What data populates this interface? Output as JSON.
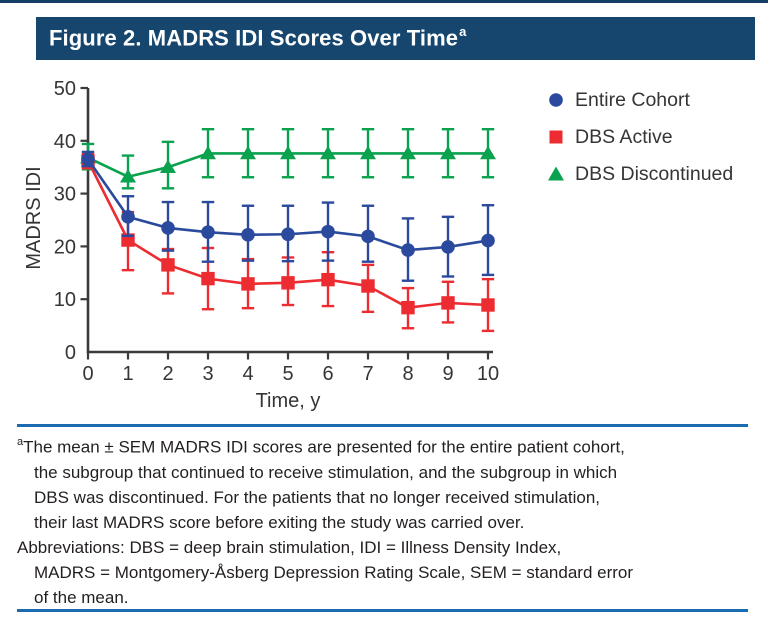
{
  "header": {
    "title": "Figure 2. MADRS IDI Scores Over Time",
    "superscript": "a",
    "bg": "#16466d",
    "text_color": "#ffffff"
  },
  "rules": {
    "top_color": "#163f66",
    "separator_color": "#1b6bb0"
  },
  "chart_data": {
    "type": "line",
    "title": "MADRS IDI Scores Over Time",
    "xlabel": "Time, y",
    "ylabel": "MADRS IDI",
    "xlim": [
      0,
      10
    ],
    "ylim": [
      0,
      50
    ],
    "xticks": [
      0,
      1,
      2,
      3,
      4,
      5,
      6,
      7,
      8,
      9,
      10
    ],
    "yticks": [
      0,
      10,
      20,
      30,
      40,
      50
    ],
    "grid": false,
    "legend_position": "top-right",
    "error_bars": "mean ± SEM",
    "axis_color": "#3b3b3b",
    "series": [
      {
        "name": "Entire Cohort",
        "marker": "circle",
        "color": "#2b4a9d",
        "values": [
          36.5,
          25.6,
          23.5,
          22.7,
          22.2,
          22.3,
          22.8,
          21.9,
          19.3,
          19.9,
          21.1
        ],
        "err_low": [
          35.2,
          22.0,
          19.2,
          17.1,
          17.3,
          17.2,
          17.3,
          17.1,
          13.5,
          14.3,
          14.6
        ],
        "err_high": [
          37.9,
          29.5,
          28.4,
          28.4,
          27.7,
          27.7,
          28.3,
          27.7,
          25.3,
          25.6,
          27.8
        ]
      },
      {
        "name": "DBS Active",
        "marker": "square",
        "color": "#ec2c30",
        "values": [
          36.2,
          21.2,
          16.5,
          13.9,
          12.9,
          13.1,
          13.7,
          12.5,
          8.4,
          9.3,
          8.9
        ],
        "err_low": [
          34.8,
          15.5,
          11.1,
          8.1,
          8.3,
          8.9,
          8.7,
          7.6,
          4.5,
          5.6,
          4.0
        ],
        "err_high": [
          37.6,
          26.5,
          19.5,
          19.7,
          17.6,
          17.9,
          18.9,
          16.5,
          12.1,
          13.3,
          13.8
        ]
      },
      {
        "name": "DBS Discontinued",
        "marker": "triangle",
        "color": "#0aa24e",
        "values": [
          36.8,
          33.2,
          35.0,
          37.6,
          37.6,
          37.6,
          37.6,
          37.6,
          37.6,
          37.6,
          37.6
        ],
        "err_low": [
          34.6,
          31.0,
          31.0,
          33.1,
          33.1,
          33.1,
          33.1,
          33.1,
          33.1,
          33.1,
          33.1
        ],
        "err_high": [
          39.4,
          37.2,
          39.8,
          42.2,
          42.2,
          42.2,
          42.2,
          42.2,
          42.2,
          42.2,
          42.2
        ]
      }
    ]
  },
  "footnotes": {
    "marker": "a",
    "note_lines": [
      "The mean ± SEM MADRS IDI scores are presented for the entire patient cohort,",
      "the subgroup that continued to receive stimulation, and the subgroup in which",
      "DBS was discontinued. For the patients that no longer received stimulation,",
      "their last MADRS score before exiting the study was carried over."
    ],
    "abbrev_lines": [
      "Abbreviations: DBS = deep brain stimulation, IDI = Illness Density Index,",
      "MADRS = Montgomery-Åsberg Depression Rating Scale, SEM = standard error",
      "of the mean."
    ]
  }
}
